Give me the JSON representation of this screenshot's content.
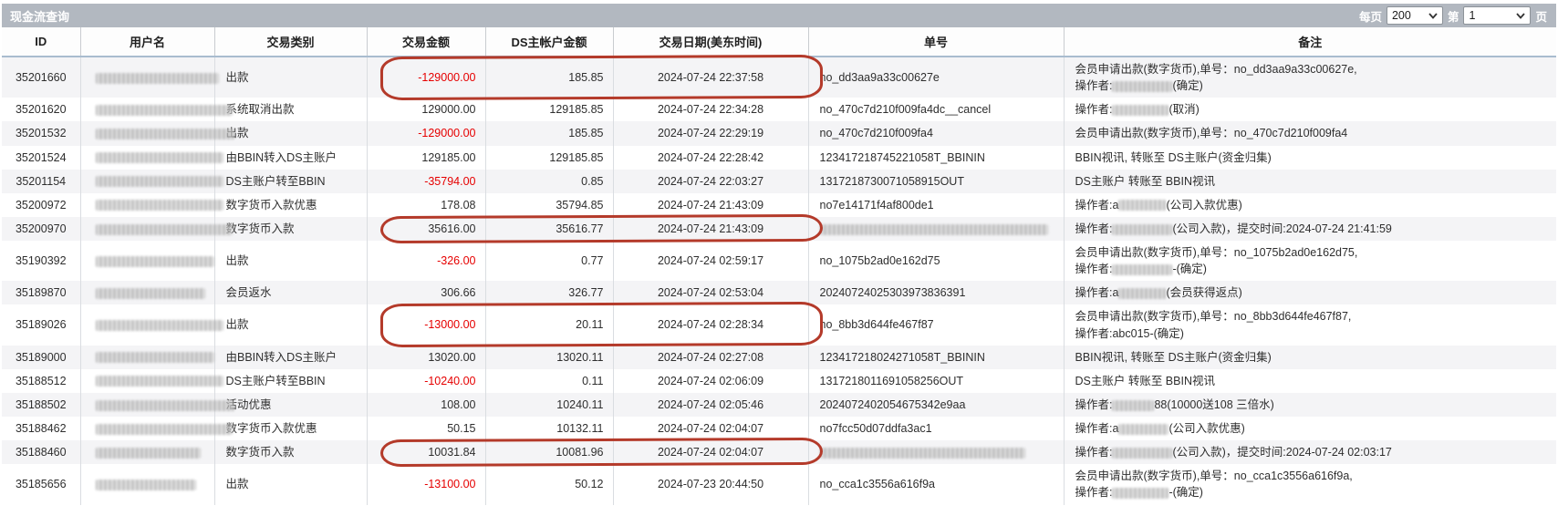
{
  "title_bar": {
    "title": "现金流查询",
    "per_page_label": "每页",
    "per_page_value": "200",
    "page_label_prefix": "第",
    "page_value": "1",
    "page_label_suffix": "页"
  },
  "colors": {
    "negative_amount_red": "#e60000",
    "circle_annotation_red": "#b43a2a",
    "title_bar_bg": "#b2b8c0",
    "zebra_row_bg": "#f4f4f6"
  },
  "table": {
    "columns": [
      {
        "key": "id",
        "label": "ID"
      },
      {
        "key": "user",
        "label": "用户名"
      },
      {
        "key": "type",
        "label": "交易类别"
      },
      {
        "key": "amount",
        "label": "交易金额"
      },
      {
        "key": "ds",
        "label": "DS主帐户金额"
      },
      {
        "key": "date",
        "label": "交易日期(美东时间)"
      },
      {
        "key": "order",
        "label": "单号"
      },
      {
        "key": "remark",
        "label": "备注"
      }
    ],
    "rows": [
      {
        "id": "35201660",
        "user": "{blur:135}",
        "type": "出款",
        "amount": "-129000.00",
        "ds": "185.85",
        "date": "2024-07-24 22:37:58",
        "order": "no_dd3aa9a33c00627e",
        "remark": "会员申请出款(数字货币),单号：no_dd3aa9a33c00627e,{br}操作者:{blur:66}(确定)",
        "circled": true
      },
      {
        "id": "35201620",
        "user": "{blur:150}",
        "type": "系统取消出款",
        "amount": "129000.00",
        "ds": "129185.85",
        "date": "2024-07-24 22:34:28",
        "order": "no_470c7d210f009fa4dc__cancel",
        "remark": "操作者:{blur:62}(取消)",
        "circled": false
      },
      {
        "id": "35201532",
        "user": "{blur:152}",
        "type": "出款",
        "amount": "-129000.00",
        "ds": "185.85",
        "date": "2024-07-24 22:29:19",
        "order": "no_470c7d210f009fa4",
        "remark": "会员申请出款(数字货币),单号：no_470c7d210f009fa4",
        "circled": false
      },
      {
        "id": "35201524",
        "user": "{blur:140}",
        "type": "由BBIN转入DS主账户",
        "amount": "129185.00",
        "ds": "129185.85",
        "date": "2024-07-24 22:28:42",
        "order": "123417218745221058T_BBININ",
        "remark": "BBIN视讯, 转账至 DS主账户(资金归集)",
        "circled": false
      },
      {
        "id": "35201154",
        "user": "{blur:140}",
        "type": "DS主账户转至BBIN",
        "amount": "-35794.00",
        "ds": "0.85",
        "date": "2024-07-24 22:03:27",
        "order": "1317218730071058915OUT",
        "remark": "DS主账户 转账至 BBIN视讯",
        "circled": false
      },
      {
        "id": "35200972",
        "user": "{blur:140}",
        "type": "数字货币入款优惠",
        "amount": "178.08",
        "ds": "35794.85",
        "date": "2024-07-24 21:43:09",
        "order": "no7e14171f4af800de1",
        "remark": "操作者:a{blur:52}(公司入款优惠)",
        "circled": false
      },
      {
        "id": "35200970",
        "user": "{blur:150}",
        "type": "数字货币入款",
        "amount": "35616.00",
        "ds": "35616.77",
        "date": "2024-07-24 21:43:09",
        "order": "{blur:250}",
        "remark": "操作者:{blur:66}(公司入款)，提交时间:2024-07-24 21:41:59",
        "circled": true
      },
      {
        "id": "35190392",
        "user": "{blur:130}",
        "type": "出款",
        "amount": "-326.00",
        "ds": "0.77",
        "date": "2024-07-24 02:59:17",
        "order": "no_1075b2ad0e162d75",
        "remark": "会员申请出款(数字货币),单号：no_1075b2ad0e162d75,{br}操作者:{blur:66}-(确定)",
        "circled": false
      },
      {
        "id": "35189870",
        "user": "{blur:120}",
        "type": "会员返水",
        "amount": "306.66",
        "ds": "326.77",
        "date": "2024-07-24 02:53:04",
        "order": "20240724025303973836391",
        "remark": "操作者:a{blur:52}(会员获得返点)",
        "circled": false
      },
      {
        "id": "35189026",
        "user": "{blur:140}",
        "type": "出款",
        "amount": "-13000.00",
        "ds": "20.11",
        "date": "2024-07-24 02:28:34",
        "order": "no_8bb3d644fe467f87",
        "remark": "会员申请出款(数字货币),单号：no_8bb3d644fe467f87,{br}操作者:abc015-(确定)",
        "circled": true
      },
      {
        "id": "35189000",
        "user": "{blur:130}",
        "type": "由BBIN转入DS主账户",
        "amount": "13020.00",
        "ds": "13020.11",
        "date": "2024-07-24 02:27:08",
        "order": "123417218024271058T_BBININ",
        "remark": "BBIN视讯, 转账至 DS主账户(资金归集)",
        "circled": false
      },
      {
        "id": "35188512",
        "user": "{blur:140}",
        "type": "DS主账户转至BBIN",
        "amount": "-10240.00",
        "ds": "0.11",
        "date": "2024-07-24 02:06:09",
        "order": "1317218011691058256OUT",
        "remark": "DS主账户 转账至 BBIN视讯",
        "circled": false
      },
      {
        "id": "35188502",
        "user": "{blur:152}",
        "type": "活动优惠",
        "amount": "108.00",
        "ds": "10240.11",
        "date": "2024-07-24 02:05:46",
        "order": "2024072402054675342e9aa",
        "remark": "操作者:{blur:46}88(10000送108 三倍水)",
        "circled": false
      },
      {
        "id": "35188462",
        "user": "{blur:150}",
        "type": "数字货币入款优惠",
        "amount": "50.15",
        "ds": "10132.11",
        "date": "2024-07-24 02:04:07",
        "order": "no7fcc50d07ddfa3ac1",
        "remark": "操作者:a{blur:55}(公司入款优惠)",
        "circled": false
      },
      {
        "id": "35188460",
        "user": "{blur:115}",
        "type": "数字货币入款",
        "amount": "10031.84",
        "ds": "10081.96",
        "date": "2024-07-24 02:04:07",
        "order": "{blur:225}",
        "remark": "操作者:{blur:66}(公司入款)，提交时间:2024-07-24 02:03:17",
        "circled": true
      },
      {
        "id": "35185656",
        "user": "{blur:110}",
        "type": "出款",
        "amount": "-13100.00",
        "ds": "50.12",
        "date": "2024-07-23 20:44:50",
        "order": "no_cca1c3556a616f9a",
        "remark": "会员申请出款(数字货币),单号：no_cca1c3556a616f9a,{br}操作者:{blur:62}-(确定)",
        "circled": false
      }
    ]
  }
}
